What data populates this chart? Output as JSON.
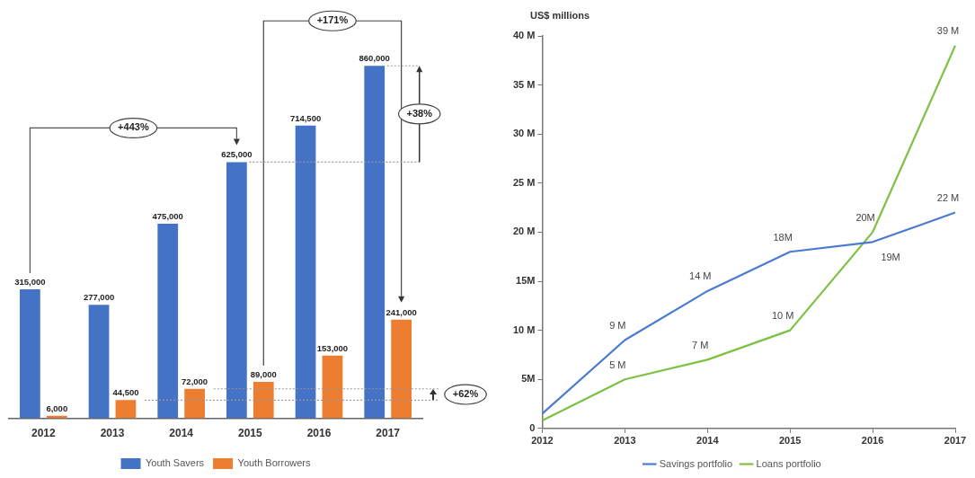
{
  "chart_data": [
    {
      "type": "bar",
      "categories": [
        "2012",
        "2013",
        "2014",
        "2015",
        "2016",
        "2017"
      ],
      "series": [
        {
          "name": "Youth Savers",
          "color": "#4472c4",
          "values": [
            315000,
            277000,
            475000,
            625000,
            714500,
            860000
          ],
          "value_labels": [
            "315,000",
            "277,000",
            "475,000",
            "625,000",
            "714,500",
            "860,000"
          ]
        },
        {
          "name": "Youth Borrowers",
          "color": "#ed7d31",
          "values": [
            6000,
            44500,
            72000,
            89000,
            153000,
            241000
          ],
          "value_labels": [
            "6,000",
            "44,500",
            "72,000",
            "89,000",
            "153,000",
            "241,000"
          ]
        }
      ],
      "annotations": [
        "+443%",
        "+171%",
        "+38%",
        "+62%"
      ],
      "grid": false,
      "legend": "bottom",
      "tick_labels": "x"
    },
    {
      "type": "line",
      "categories": [
        "2012",
        "2013",
        "2014",
        "2015",
        "2016",
        "2017"
      ],
      "ylabel": "US$ millions",
      "series": [
        {
          "name": "Savings portfolio",
          "color": "#4a7bd0",
          "values": [
            1.5,
            9,
            14,
            18,
            19,
            22
          ],
          "value_labels": [
            null,
            "9 M",
            "14 M",
            "18M",
            "19M",
            "22 M"
          ]
        },
        {
          "name": "Loans portfolio",
          "color": "#7cc142",
          "values": [
            0.8,
            5,
            7,
            10,
            20,
            39
          ],
          "value_labels": [
            null,
            "5 M",
            "7 M",
            "10 M",
            "20M",
            "39 M"
          ]
        }
      ],
      "ylim": [
        0,
        40
      ],
      "yticks": [
        0,
        {
          "value": 5,
          "label": "5M"
        },
        {
          "value": 10,
          "label": "10 M"
        },
        {
          "value": 15,
          "label": "15M"
        },
        {
          "value": 20,
          "label": "20 M"
        },
        {
          "value": 25,
          "label": "25 M"
        },
        {
          "value": 30,
          "label": "30 M"
        },
        {
          "value": 35,
          "label": "35 M"
        },
        {
          "value": 40,
          "label": "40 M"
        }
      ],
      "grid": false,
      "legend": "bottom",
      "marker": "none",
      "line_style": "solid"
    }
  ]
}
